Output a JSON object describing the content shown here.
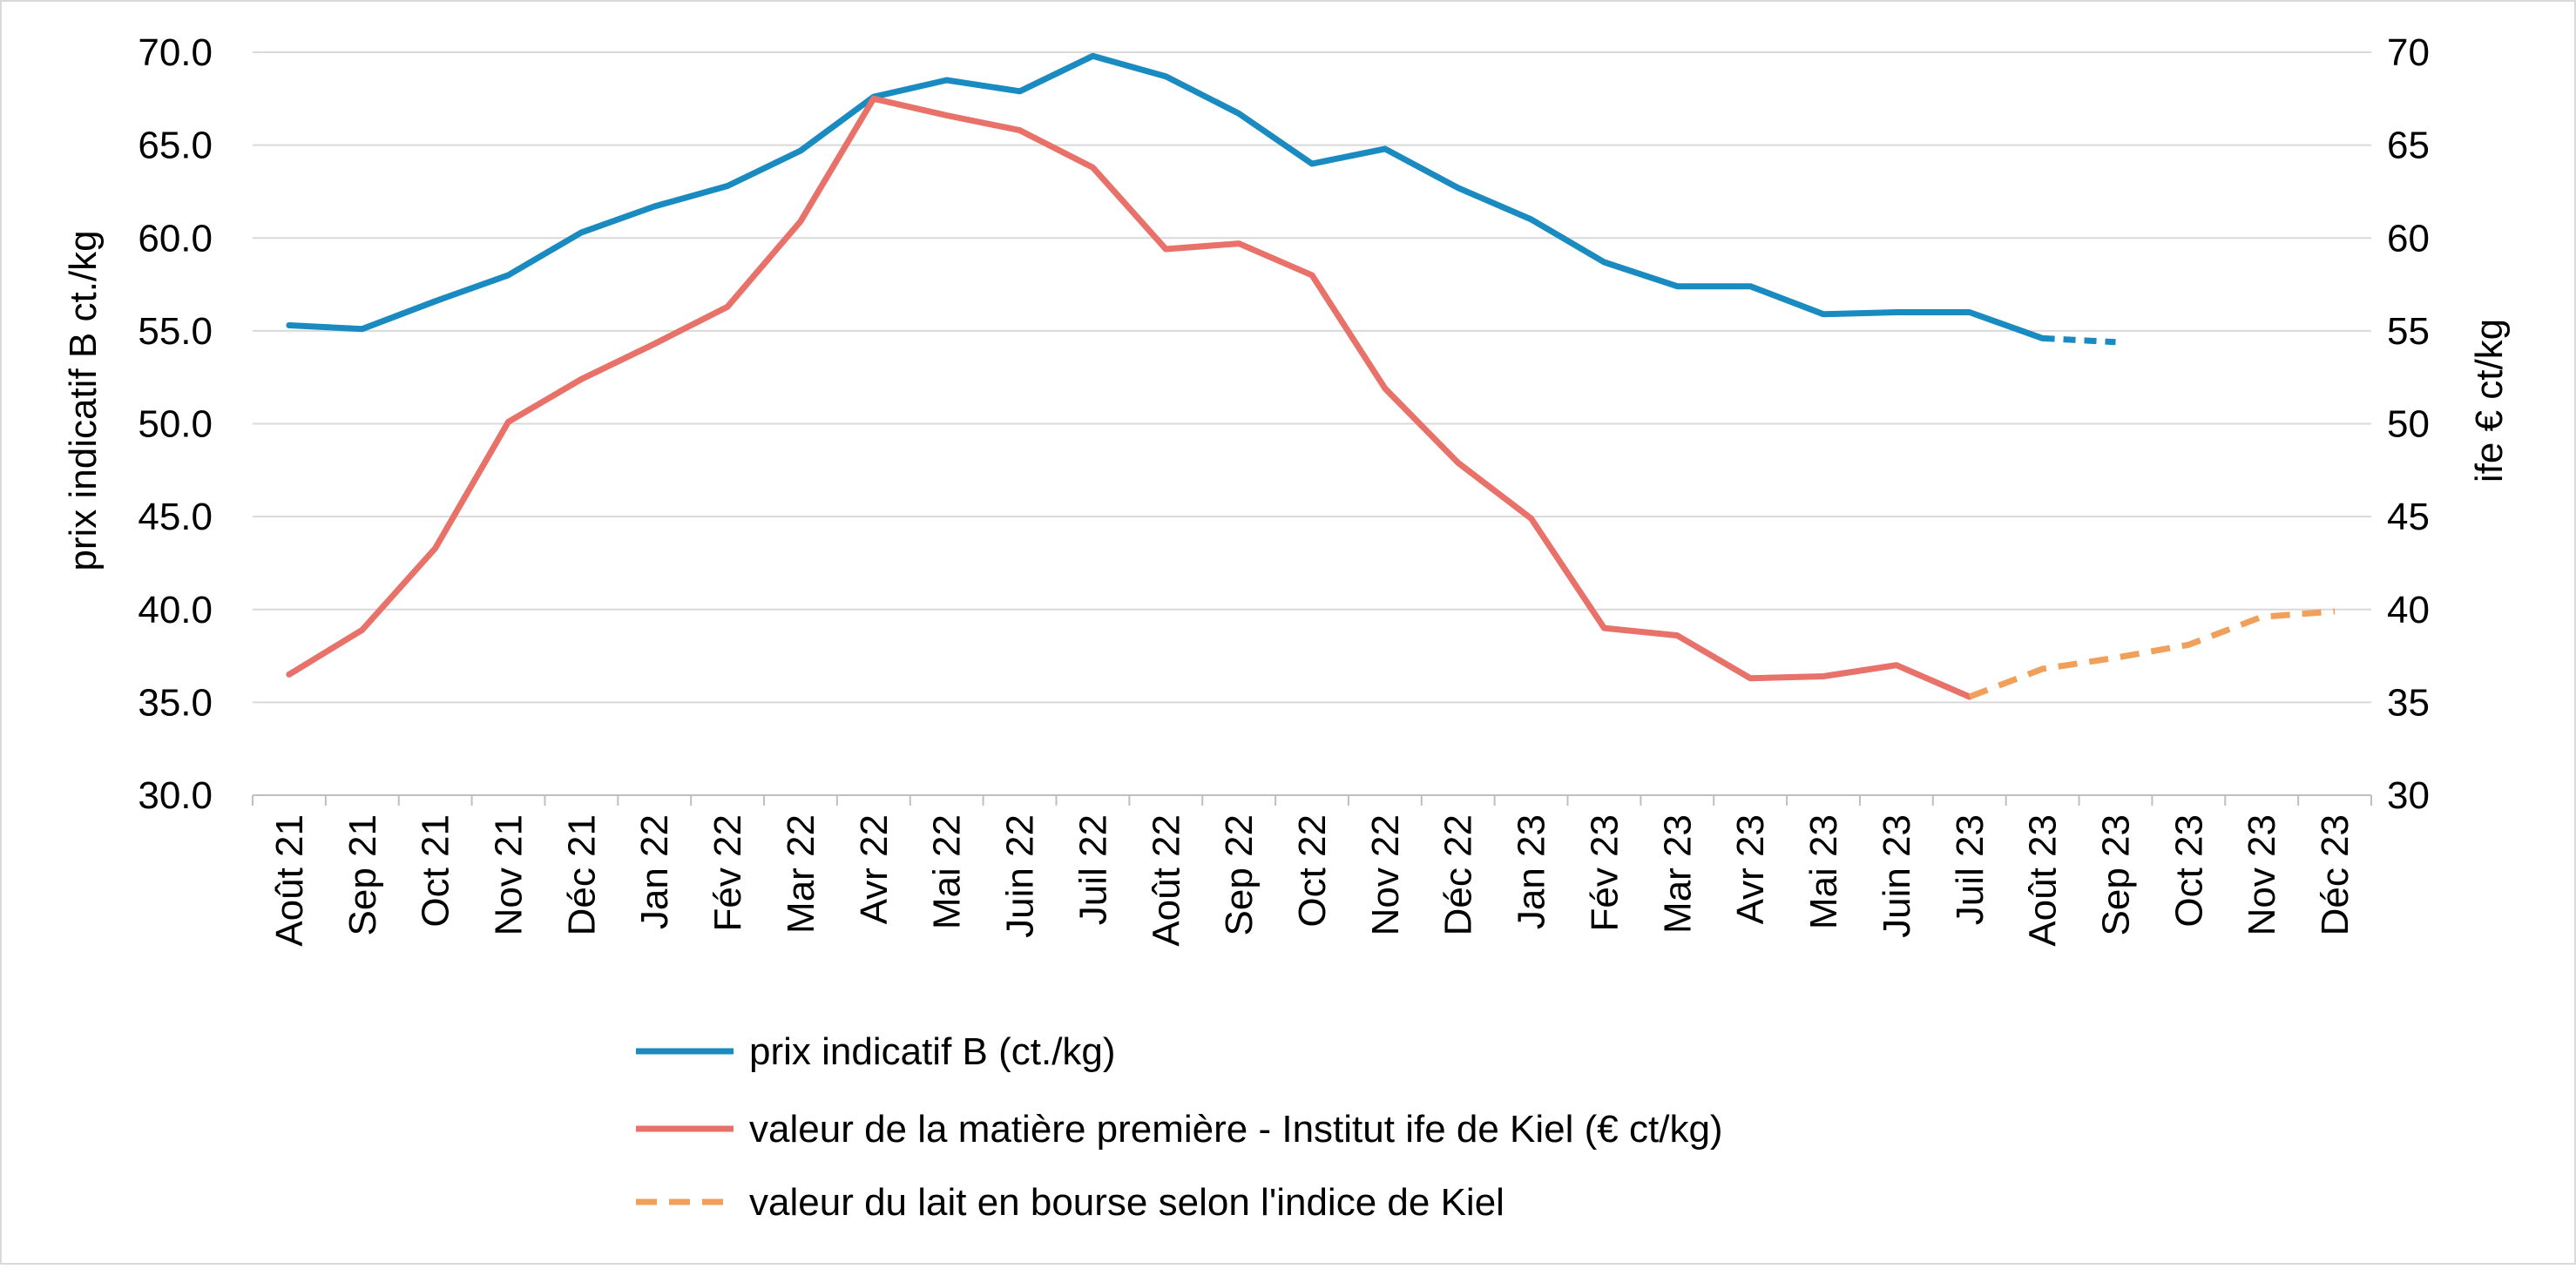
{
  "chart_data": {
    "type": "line",
    "categories": [
      "Août 21",
      "Sep 21",
      "Oct 21",
      "Nov 21",
      "Déc 21",
      "Jan 22",
      "Fév 22",
      "Mar 22",
      "Avr 22",
      "Mai 22",
      "Juin 22",
      "Juil 22",
      "Août 22",
      "Sep 22",
      "Oct 22",
      "Nov 22",
      "Déc 22",
      "Jan 23",
      "Fév 23",
      "Mar 23",
      "Avr 23",
      "Mai 23",
      "Juin 23",
      "Juil 23",
      "Août 23",
      "Sep 23",
      "Oct 23",
      "Nov 23",
      "Déc 23"
    ],
    "ylabel": "prix indicatif B ct./kg",
    "ylabel_right": "ife € ct/kg",
    "ylim": [
      30,
      70
    ],
    "yticks_left": [
      "30.0",
      "35.0",
      "40.0",
      "45.0",
      "50.0",
      "55.0",
      "60.0",
      "65.0",
      "70.0"
    ],
    "yticks_right": [
      "30",
      "35",
      "40",
      "45",
      "50",
      "55",
      "60",
      "65",
      "70"
    ],
    "grid": true,
    "legend_position": "bottom",
    "series": [
      {
        "name": "prix indicatif B (ct./kg)",
        "color": "#1a8bc0",
        "style": "solid",
        "values": [
          55.3,
          55.1,
          56.6,
          58.0,
          60.3,
          61.7,
          62.8,
          64.7,
          67.6,
          68.5,
          67.9,
          69.8,
          68.7,
          66.7,
          64.0,
          64.8,
          62.7,
          61.0,
          58.7,
          57.4,
          57.4,
          55.9,
          56.0,
          56.0,
          54.6,
          null,
          null,
          null,
          null
        ]
      },
      {
        "name": "",
        "color": "#1a8bc0",
        "style": "dotted",
        "values": [
          null,
          null,
          null,
          null,
          null,
          null,
          null,
          null,
          null,
          null,
          null,
          null,
          null,
          null,
          null,
          null,
          null,
          null,
          null,
          null,
          null,
          null,
          null,
          null,
          54.6,
          54.4,
          null,
          null,
          null
        ]
      },
      {
        "name": "valeur de la matière première - Institut ife de Kiel (€ ct/kg)",
        "color": "#e8716a",
        "style": "solid",
        "values": [
          36.5,
          38.9,
          43.3,
          50.1,
          52.4,
          54.3,
          56.3,
          60.9,
          67.5,
          66.6,
          65.8,
          63.8,
          59.4,
          59.7,
          58.0,
          51.9,
          47.9,
          44.9,
          39.0,
          38.6,
          36.3,
          36.4,
          37.0,
          35.3,
          null,
          null,
          null,
          null,
          null
        ]
      },
      {
        "name": "valeur du lait en bourse selon l'indice de Kiel",
        "color": "#f0a05a",
        "style": "dashed",
        "values": [
          null,
          null,
          null,
          null,
          null,
          null,
          null,
          null,
          null,
          null,
          null,
          null,
          null,
          null,
          null,
          null,
          null,
          null,
          null,
          null,
          null,
          null,
          null,
          35.3,
          36.8,
          37.4,
          38.1,
          39.6,
          39.9
        ]
      }
    ],
    "legend": [
      {
        "label": "prix indicatif B (ct./kg)",
        "color": "#1a8bc0",
        "style": "solid"
      },
      {
        "label": "valeur de la matière première - Institut ife de Kiel (€ ct/kg)",
        "color": "#e8716a",
        "style": "solid"
      },
      {
        "label": "valeur du lait en bourse selon l'indice de Kiel",
        "color": "#f0a05a",
        "style": "dashed"
      }
    ]
  }
}
